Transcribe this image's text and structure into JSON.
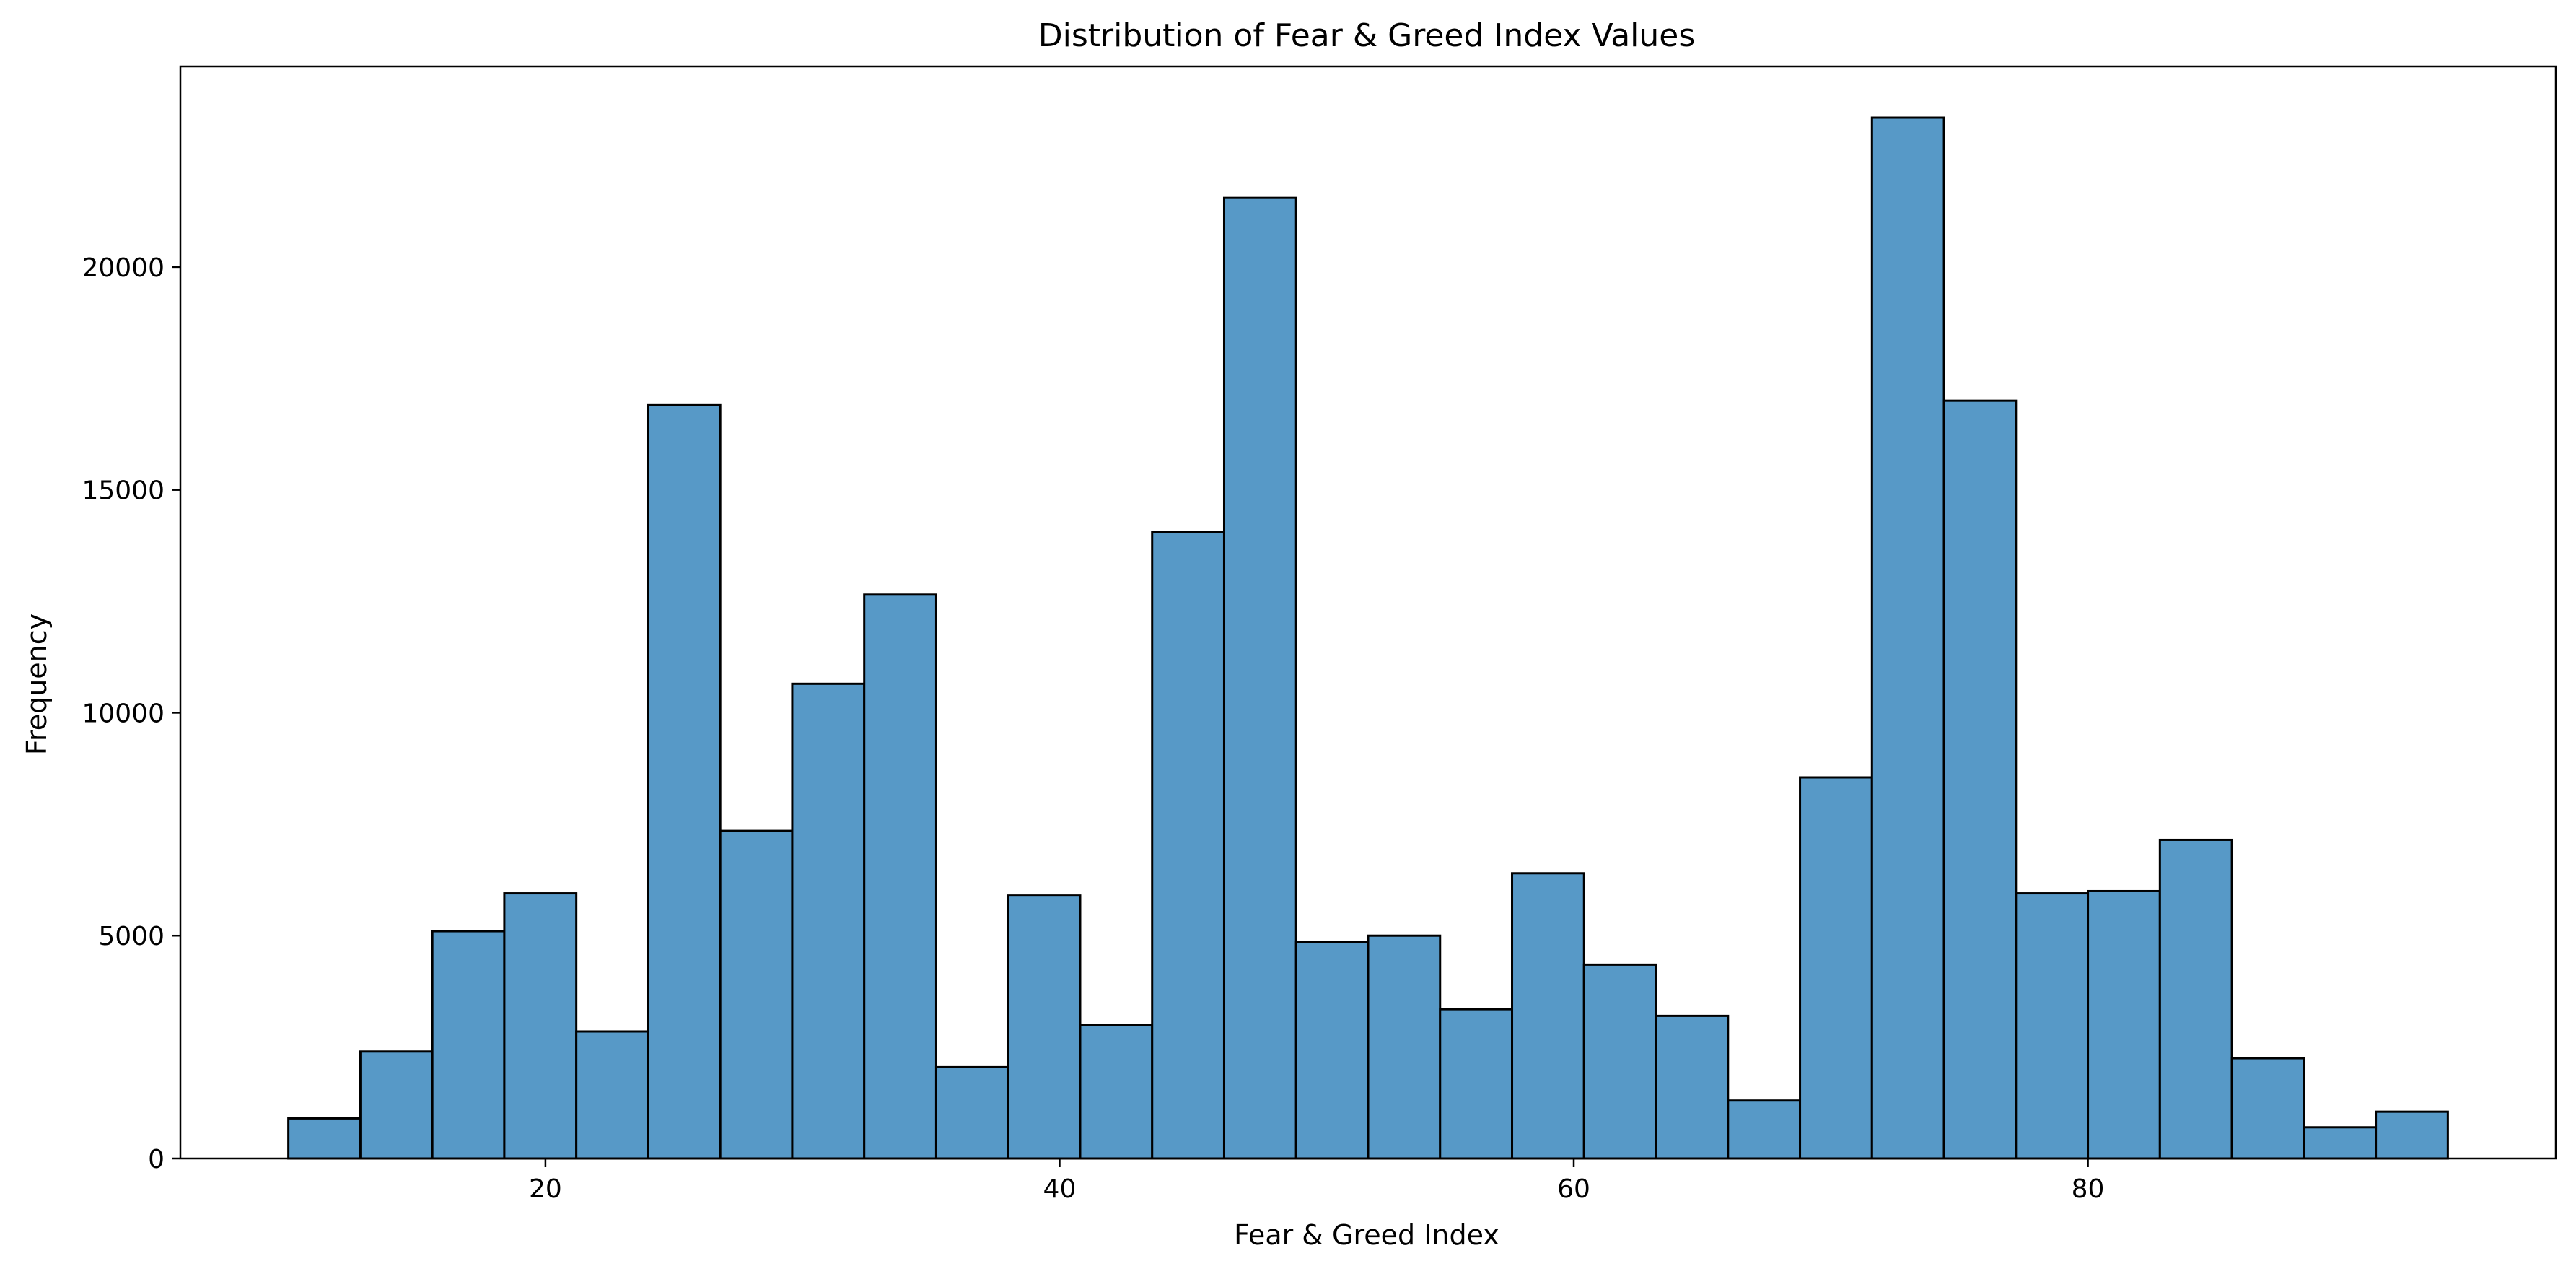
{
  "chart_data": {
    "type": "bar",
    "title": "Distribution of Fear & Greed Index Values",
    "xlabel": "Fear & Greed Index",
    "ylabel": "Frequency",
    "xlim": [
      5.8,
      98.2
    ],
    "ylim": [
      0,
      24500
    ],
    "xticks": [
      20,
      40,
      60,
      80
    ],
    "yticks": [
      0,
      5000,
      10000,
      15000,
      20000
    ],
    "bar_color": "#5799c7",
    "edge_color": "#000000",
    "bins": [
      {
        "x0": 10.0,
        "x1": 12.8,
        "value": 900
      },
      {
        "x0": 12.8,
        "x1": 15.6,
        "value": 2400
      },
      {
        "x0": 15.6,
        "x1": 18.4,
        "value": 5100
      },
      {
        "x0": 18.4,
        "x1": 21.2,
        "value": 5950
      },
      {
        "x0": 21.2,
        "x1": 24.0,
        "value": 2850
      },
      {
        "x0": 24.0,
        "x1": 26.8,
        "value": 16900
      },
      {
        "x0": 26.8,
        "x1": 29.6,
        "value": 7350
      },
      {
        "x0": 29.6,
        "x1": 32.4,
        "value": 10650
      },
      {
        "x0": 32.4,
        "x1": 35.2,
        "value": 12650
      },
      {
        "x0": 35.2,
        "x1": 38.0,
        "value": 2050
      },
      {
        "x0": 38.0,
        "x1": 40.8,
        "value": 5900
      },
      {
        "x0": 40.8,
        "x1": 43.6,
        "value": 3000
      },
      {
        "x0": 43.6,
        "x1": 46.4,
        "value": 14050
      },
      {
        "x0": 46.4,
        "x1": 49.2,
        "value": 21550
      },
      {
        "x0": 49.2,
        "x1": 52.0,
        "value": 4850
      },
      {
        "x0": 52.0,
        "x1": 54.8,
        "value": 5000
      },
      {
        "x0": 54.8,
        "x1": 57.6,
        "value": 3350
      },
      {
        "x0": 57.6,
        "x1": 60.4,
        "value": 6400
      },
      {
        "x0": 60.4,
        "x1": 63.2,
        "value": 4350
      },
      {
        "x0": 63.2,
        "x1": 66.0,
        "value": 3200
      },
      {
        "x0": 66.0,
        "x1": 68.8,
        "value": 1300
      },
      {
        "x0": 68.8,
        "x1": 71.6,
        "value": 8550
      },
      {
        "x0": 71.6,
        "x1": 74.4,
        "value": 23350
      },
      {
        "x0": 74.4,
        "x1": 77.2,
        "value": 17000
      },
      {
        "x0": 77.2,
        "x1": 80.0,
        "value": 5950
      },
      {
        "x0": 80.0,
        "x1": 82.8,
        "value": 6000
      },
      {
        "x0": 82.8,
        "x1": 85.6,
        "value": 7150
      },
      {
        "x0": 85.6,
        "x1": 88.4,
        "value": 2250
      },
      {
        "x0": 88.4,
        "x1": 91.2,
        "value": 700
      },
      {
        "x0": 91.2,
        "x1": 94.0,
        "value": 1050
      }
    ]
  }
}
